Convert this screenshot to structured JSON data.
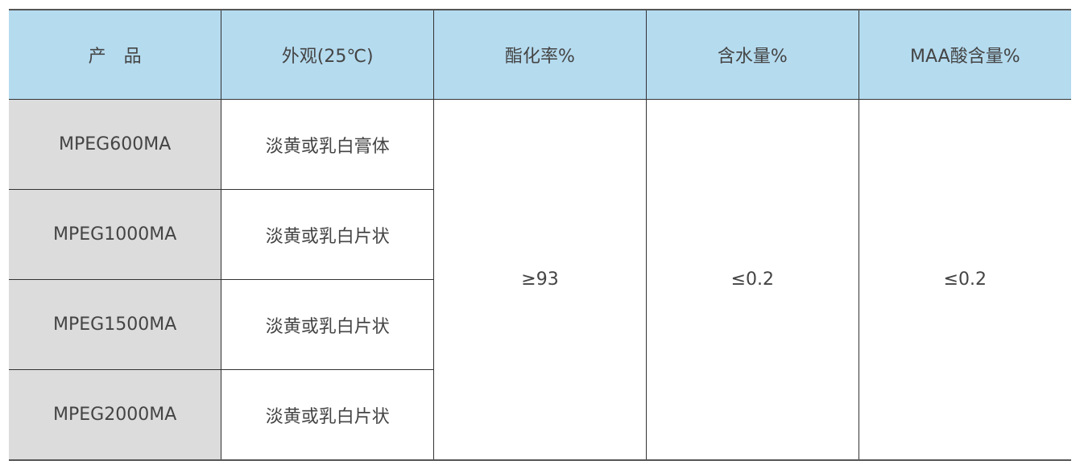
{
  "header": [
    "产　品",
    "外观(25℃)",
    "酯化率%",
    "含水量%",
    "MAA酸含量%"
  ],
  "rows": [
    {
      "product": "MPEG600MA",
      "appearance": "淡黄或乳白膏体"
    },
    {
      "product": "MPEG1000MA",
      "appearance": "淡黄或乳白片状"
    },
    {
      "product": "MPEG1500MA",
      "appearance": "淡黄或乳白片状"
    },
    {
      "product": "MPEG2000MA",
      "appearance": "淡黄或乳白片状"
    }
  ],
  "shared": {
    "esterification": "≥93",
    "water": "≤0.2",
    "maa": "≤0.2"
  },
  "colors": {
    "header_bg": "#b5dbef",
    "product_bg": "#dcdcdc"
  }
}
